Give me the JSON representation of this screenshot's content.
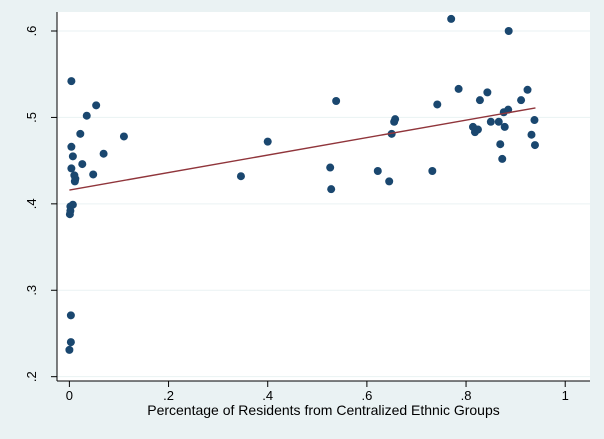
{
  "chart_data": {
    "type": "scatter",
    "title": "",
    "xlabel": "Percentage of Residents from Centralized Ethnic Groups",
    "ylabel": "",
    "xlim": [
      -0.025,
      1.05
    ],
    "ylim": [
      0.195,
      0.622
    ],
    "x_ticks": [
      {
        "value": 0,
        "label": "0"
      },
      {
        "value": 0.2,
        "label": ".2"
      },
      {
        "value": 0.4,
        "label": ".4"
      },
      {
        "value": 0.6,
        "label": ".6"
      },
      {
        "value": 0.8,
        "label": ".8"
      },
      {
        "value": 1,
        "label": "1"
      }
    ],
    "y_ticks": [
      {
        "value": 0.2,
        "label": ".2"
      },
      {
        "value": 0.3,
        "label": ".3"
      },
      {
        "value": 0.4,
        "label": ".4"
      },
      {
        "value": 0.5,
        "label": ".5"
      },
      {
        "value": 0.6,
        "label": ".6"
      }
    ],
    "grid": "horizontal",
    "colors": {
      "background": "#eaf2f3",
      "plot_background": "#ffffff",
      "points": "#1a476f",
      "fit_line": "#90353b",
      "grid": "#eaf2f3"
    },
    "series": [
      {
        "points": [
          {
            "x": 0.0,
            "y": 0.231
          },
          {
            "x": 0.003,
            "y": 0.24
          },
          {
            "x": 0.003,
            "y": 0.271
          },
          {
            "x": 0.001,
            "y": 0.388
          },
          {
            "x": 0.002,
            "y": 0.392
          },
          {
            "x": 0.002,
            "y": 0.397
          },
          {
            "x": 0.007,
            "y": 0.399
          },
          {
            "x": 0.004,
            "y": 0.441
          },
          {
            "x": 0.007,
            "y": 0.455
          },
          {
            "x": 0.004,
            "y": 0.466
          },
          {
            "x": 0.011,
            "y": 0.426
          },
          {
            "x": 0.012,
            "y": 0.429
          },
          {
            "x": 0.01,
            "y": 0.433
          },
          {
            "x": 0.004,
            "y": 0.542
          },
          {
            "x": 0.022,
            "y": 0.481
          },
          {
            "x": 0.026,
            "y": 0.446
          },
          {
            "x": 0.035,
            "y": 0.502
          },
          {
            "x": 0.048,
            "y": 0.434
          },
          {
            "x": 0.054,
            "y": 0.514
          },
          {
            "x": 0.069,
            "y": 0.458
          },
          {
            "x": 0.11,
            "y": 0.478
          },
          {
            "x": 0.346,
            "y": 0.432
          },
          {
            "x": 0.4,
            "y": 0.472
          },
          {
            "x": 0.526,
            "y": 0.442
          },
          {
            "x": 0.528,
            "y": 0.417
          },
          {
            "x": 0.538,
            "y": 0.519
          },
          {
            "x": 0.622,
            "y": 0.438
          },
          {
            "x": 0.645,
            "y": 0.426
          },
          {
            "x": 0.65,
            "y": 0.481
          },
          {
            "x": 0.655,
            "y": 0.495
          },
          {
            "x": 0.657,
            "y": 0.498
          },
          {
            "x": 0.732,
            "y": 0.438
          },
          {
            "x": 0.742,
            "y": 0.515
          },
          {
            "x": 0.77,
            "y": 0.614
          },
          {
            "x": 0.785,
            "y": 0.533
          },
          {
            "x": 0.814,
            "y": 0.489
          },
          {
            "x": 0.818,
            "y": 0.483
          },
          {
            "x": 0.824,
            "y": 0.486
          },
          {
            "x": 0.828,
            "y": 0.52
          },
          {
            "x": 0.843,
            "y": 0.529
          },
          {
            "x": 0.85,
            "y": 0.495
          },
          {
            "x": 0.866,
            "y": 0.495
          },
          {
            "x": 0.869,
            "y": 0.469
          },
          {
            "x": 0.873,
            "y": 0.452
          },
          {
            "x": 0.876,
            "y": 0.506
          },
          {
            "x": 0.878,
            "y": 0.489
          },
          {
            "x": 0.885,
            "y": 0.509
          },
          {
            "x": 0.886,
            "y": 0.6
          },
          {
            "x": 0.911,
            "y": 0.52
          },
          {
            "x": 0.924,
            "y": 0.532
          },
          {
            "x": 0.932,
            "y": 0.48
          },
          {
            "x": 0.938,
            "y": 0.497
          },
          {
            "x": 0.939,
            "y": 0.468
          }
        ]
      }
    ],
    "fit_line": {
      "type": "linear",
      "x": [
        0.0,
        0.94
      ],
      "y": [
        0.416,
        0.511
      ]
    }
  }
}
